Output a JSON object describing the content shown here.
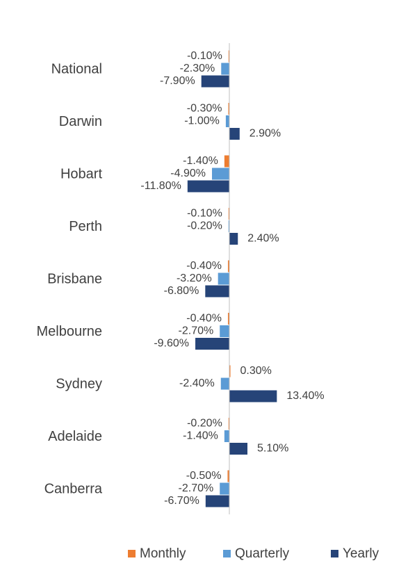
{
  "chart_data": {
    "type": "bar",
    "orientation": "horizontal",
    "categories": [
      "National",
      "Darwin",
      "Hobart",
      "Perth",
      "Brisbane",
      "Melbourne",
      "Sydney",
      "Adelaide",
      "Canberra"
    ],
    "series": [
      {
        "name": "Monthly",
        "color": "#ED7D31",
        "values": [
          -0.1,
          -0.3,
          -1.4,
          -0.1,
          -0.4,
          -0.4,
          0.3,
          -0.2,
          -0.5
        ],
        "labels": [
          "-0.10%",
          "-0.30%",
          "-1.40%",
          "-0.10%",
          "-0.40%",
          "-0.40%",
          "0.30%",
          "-0.20%",
          "-0.50%"
        ]
      },
      {
        "name": "Quarterly",
        "color": "#5B9BD5",
        "values": [
          -2.3,
          -1.0,
          -4.9,
          -0.2,
          -3.2,
          -2.7,
          -2.4,
          -1.4,
          -2.7
        ],
        "labels": [
          "-2.30%",
          "-1.00%",
          "-4.90%",
          "-0.20%",
          "-3.20%",
          "-2.70%",
          "-2.40%",
          "-1.40%",
          "-2.70%"
        ]
      },
      {
        "name": "Yearly",
        "color": "#264478",
        "values": [
          -7.9,
          2.9,
          -11.8,
          2.4,
          -6.8,
          -9.6,
          13.4,
          5.1,
          -6.7
        ],
        "labels": [
          "-7.90%",
          "2.90%",
          "-11.80%",
          "2.40%",
          "-6.80%",
          "-9.60%",
          "13.40%",
          "5.10%",
          "-6.70%"
        ]
      }
    ],
    "legend_position": "bottom",
    "grid": false
  }
}
